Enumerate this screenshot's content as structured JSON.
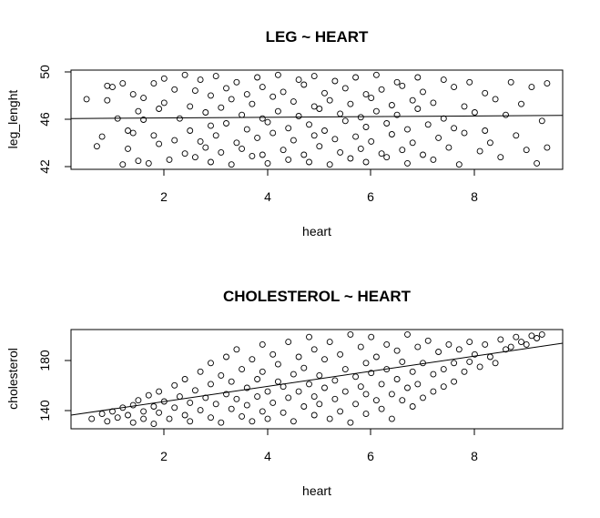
{
  "chart_data": [
    {
      "type": "scatter",
      "title": "LEG ~ HEART",
      "xlabel": "heart",
      "ylabel": "leg_lenght",
      "xlim": [
        0.3,
        9.8
      ],
      "ylim": [
        41.8,
        50.0
      ],
      "x_ticks": [
        "2",
        "4",
        "6",
        "8"
      ],
      "y_ticks": [
        "42",
        "46",
        "50"
      ],
      "trend_line": {
        "x": [
          0.3,
          9.8
        ],
        "y": [
          46.0,
          46.25
        ]
      },
      "grid": false,
      "legend": "none",
      "marker": "open-circle",
      "points": [
        [
          0.6,
          47.6
        ],
        [
          0.8,
          43.7
        ],
        [
          0.9,
          44.5
        ],
        [
          1.0,
          48.7
        ],
        [
          1.0,
          47.5
        ],
        [
          1.1,
          48.6
        ],
        [
          1.2,
          46.0
        ],
        [
          1.3,
          48.9
        ],
        [
          1.3,
          42.2
        ],
        [
          1.4,
          45.0
        ],
        [
          1.4,
          43.5
        ],
        [
          1.5,
          48.0
        ],
        [
          1.5,
          44.8
        ],
        [
          1.6,
          46.6
        ],
        [
          1.6,
          42.5
        ],
        [
          1.7,
          47.7
        ],
        [
          1.7,
          45.9
        ],
        [
          1.8,
          42.3
        ],
        [
          1.9,
          44.6
        ],
        [
          1.9,
          48.9
        ],
        [
          2.0,
          46.8
        ],
        [
          2.0,
          43.9
        ],
        [
          2.1,
          49.3
        ],
        [
          2.1,
          47.3
        ],
        [
          2.2,
          42.6
        ],
        [
          2.3,
          48.4
        ],
        [
          2.3,
          44.2
        ],
        [
          2.4,
          46.0
        ],
        [
          2.5,
          49.6
        ],
        [
          2.5,
          43.1
        ],
        [
          2.6,
          47.0
        ],
        [
          2.6,
          45.0
        ],
        [
          2.7,
          48.3
        ],
        [
          2.7,
          42.8
        ],
        [
          2.8,
          44.1
        ],
        [
          2.8,
          49.2
        ],
        [
          2.9,
          46.5
        ],
        [
          2.9,
          43.6
        ],
        [
          3.0,
          47.9
        ],
        [
          3.0,
          45.4
        ],
        [
          3.0,
          42.4
        ],
        [
          3.1,
          49.5
        ],
        [
          3.1,
          44.6
        ],
        [
          3.2,
          46.9
        ],
        [
          3.2,
          43.2
        ],
        [
          3.3,
          48.5
        ],
        [
          3.3,
          45.6
        ],
        [
          3.4,
          42.2
        ],
        [
          3.4,
          47.6
        ],
        [
          3.5,
          44.0
        ],
        [
          3.5,
          49.0
        ],
        [
          3.6,
          46.3
        ],
        [
          3.6,
          43.5
        ],
        [
          3.7,
          48.0
        ],
        [
          3.7,
          45.1
        ],
        [
          3.8,
          42.9
        ],
        [
          3.8,
          47.2
        ],
        [
          3.9,
          49.4
        ],
        [
          3.9,
          44.4
        ],
        [
          4.0,
          46.0
        ],
        [
          4.0,
          43.0
        ],
        [
          4.0,
          48.6
        ],
        [
          4.1,
          45.7
        ],
        [
          4.1,
          42.3
        ],
        [
          4.2,
          47.8
        ],
        [
          4.2,
          44.8
        ],
        [
          4.3,
          49.6
        ],
        [
          4.3,
          46.6
        ],
        [
          4.4,
          43.4
        ],
        [
          4.4,
          48.2
        ],
        [
          4.5,
          45.2
        ],
        [
          4.5,
          42.6
        ],
        [
          4.6,
          47.4
        ],
        [
          4.6,
          44.2
        ],
        [
          4.7,
          49.2
        ],
        [
          4.7,
          46.2
        ],
        [
          4.8,
          43.0
        ],
        [
          4.8,
          48.8
        ],
        [
          4.9,
          45.5
        ],
        [
          4.9,
          42.4
        ],
        [
          5.0,
          47.0
        ],
        [
          5.0,
          44.6
        ],
        [
          5.0,
          49.5
        ],
        [
          5.1,
          46.8
        ],
        [
          5.1,
          43.7
        ],
        [
          5.2,
          48.1
        ],
        [
          5.2,
          45.0
        ],
        [
          5.3,
          42.2
        ],
        [
          5.3,
          47.5
        ],
        [
          5.4,
          44.3
        ],
        [
          5.4,
          49.1
        ],
        [
          5.5,
          46.4
        ],
        [
          5.5,
          43.2
        ],
        [
          5.6,
          48.5
        ],
        [
          5.6,
          45.8
        ],
        [
          5.7,
          42.7
        ],
        [
          5.7,
          47.2
        ],
        [
          5.8,
          44.5
        ],
        [
          5.8,
          49.4
        ],
        [
          5.9,
          46.1
        ],
        [
          5.9,
          43.5
        ],
        [
          6.0,
          48.0
        ],
        [
          6.0,
          45.3
        ],
        [
          6.0,
          42.4
        ],
        [
          6.1,
          47.7
        ],
        [
          6.1,
          44.1
        ],
        [
          6.2,
          49.6
        ],
        [
          6.2,
          46.6
        ],
        [
          6.3,
          43.1
        ],
        [
          6.3,
          48.4
        ],
        [
          6.4,
          45.6
        ],
        [
          6.4,
          42.8
        ],
        [
          6.5,
          47.1
        ],
        [
          6.5,
          44.7
        ],
        [
          6.6,
          49.0
        ],
        [
          6.6,
          46.3
        ],
        [
          6.7,
          43.4
        ],
        [
          6.7,
          48.7
        ],
        [
          6.8,
          45.1
        ],
        [
          6.8,
          42.3
        ],
        [
          6.9,
          47.5
        ],
        [
          6.9,
          44.0
        ],
        [
          7.0,
          49.4
        ],
        [
          7.0,
          46.8
        ],
        [
          7.1,
          43.0
        ],
        [
          7.1,
          48.2
        ],
        [
          7.2,
          45.5
        ],
        [
          7.3,
          42.6
        ],
        [
          7.3,
          47.3
        ],
        [
          7.4,
          44.4
        ],
        [
          7.5,
          49.2
        ],
        [
          7.5,
          46.0
        ],
        [
          7.6,
          43.6
        ],
        [
          7.7,
          48.6
        ],
        [
          7.7,
          45.2
        ],
        [
          7.8,
          42.2
        ],
        [
          7.9,
          47.0
        ],
        [
          7.9,
          44.8
        ],
        [
          8.0,
          49.0
        ],
        [
          8.1,
          46.5
        ],
        [
          8.2,
          43.3
        ],
        [
          8.3,
          48.1
        ],
        [
          8.3,
          45.0
        ],
        [
          8.4,
          44.0
        ],
        [
          8.5,
          47.6
        ],
        [
          8.6,
          42.8
        ],
        [
          8.7,
          46.3
        ],
        [
          8.8,
          49.0
        ],
        [
          8.9,
          44.6
        ],
        [
          9.0,
          47.2
        ],
        [
          9.1,
          43.4
        ],
        [
          9.2,
          48.6
        ],
        [
          9.3,
          42.3
        ],
        [
          9.4,
          45.8
        ],
        [
          9.5,
          43.6
        ],
        [
          9.5,
          48.9
        ]
      ]
    },
    {
      "type": "scatter",
      "title": "CHOLESTEROL ~ HEART",
      "xlabel": "heart",
      "ylabel": "cholesterol",
      "xlim": [
        0.3,
        9.8
      ],
      "ylim": [
        122,
        202
      ],
      "x_ticks": [
        "2",
        "4",
        "6",
        "8"
      ],
      "y_ticks": [
        "140",
        "180"
      ],
      "trend_line": {
        "x": [
          0.3,
          9.8
        ],
        "y": [
          133,
          191
        ]
      },
      "grid": false,
      "legend": "none",
      "marker": "open-circle",
      "points": [
        [
          0.7,
          130
        ],
        [
          0.9,
          134
        ],
        [
          1.0,
          128
        ],
        [
          1.1,
          136
        ],
        [
          1.2,
          131
        ],
        [
          1.3,
          139
        ],
        [
          1.4,
          133
        ],
        [
          1.5,
          141
        ],
        [
          1.5,
          127
        ],
        [
          1.6,
          145
        ],
        [
          1.7,
          136
        ],
        [
          1.7,
          130
        ],
        [
          1.8,
          149
        ],
        [
          1.9,
          140
        ],
        [
          1.9,
          126
        ],
        [
          2.0,
          152
        ],
        [
          2.0,
          135
        ],
        [
          2.1,
          144
        ],
        [
          2.2,
          130
        ],
        [
          2.3,
          157
        ],
        [
          2.3,
          139
        ],
        [
          2.4,
          148
        ],
        [
          2.5,
          133
        ],
        [
          2.5,
          162
        ],
        [
          2.6,
          143
        ],
        [
          2.6,
          128
        ],
        [
          2.7,
          153
        ],
        [
          2.8,
          168
        ],
        [
          2.8,
          137
        ],
        [
          2.9,
          147
        ],
        [
          3.0,
          175
        ],
        [
          3.0,
          131
        ],
        [
          3.0,
          158
        ],
        [
          3.1,
          142
        ],
        [
          3.2,
          165
        ],
        [
          3.2,
          127
        ],
        [
          3.3,
          150
        ],
        [
          3.3,
          180
        ],
        [
          3.4,
          138
        ],
        [
          3.4,
          160
        ],
        [
          3.5,
          146
        ],
        [
          3.5,
          186
        ],
        [
          3.6,
          132
        ],
        [
          3.6,
          170
        ],
        [
          3.7,
          155
        ],
        [
          3.7,
          141
        ],
        [
          3.8,
          178
        ],
        [
          3.8,
          128
        ],
        [
          3.9,
          162
        ],
        [
          3.9,
          148
        ],
        [
          4.0,
          190
        ],
        [
          4.0,
          136
        ],
        [
          4.0,
          168
        ],
        [
          4.1,
          152
        ],
        [
          4.1,
          130
        ],
        [
          4.2,
          182
        ],
        [
          4.2,
          143
        ],
        [
          4.3,
          160
        ],
        [
          4.3,
          174
        ],
        [
          4.4,
          135
        ],
        [
          4.4,
          156
        ],
        [
          4.5,
          192
        ],
        [
          4.5,
          147
        ],
        [
          4.6,
          166
        ],
        [
          4.6,
          128
        ],
        [
          4.7,
          180
        ],
        [
          4.7,
          152
        ],
        [
          4.8,
          140
        ],
        [
          4.8,
          171
        ],
        [
          4.9,
          196
        ],
        [
          4.9,
          158
        ],
        [
          5.0,
          133
        ],
        [
          5.0,
          186
        ],
        [
          5.0,
          148
        ],
        [
          5.1,
          165
        ],
        [
          5.1,
          142
        ],
        [
          5.2,
          178
        ],
        [
          5.2,
          155
        ],
        [
          5.3,
          130
        ],
        [
          5.3,
          192
        ],
        [
          5.4,
          161
        ],
        [
          5.4,
          146
        ],
        [
          5.5,
          182
        ],
        [
          5.5,
          136
        ],
        [
          5.6,
          170
        ],
        [
          5.6,
          152
        ],
        [
          5.7,
          198
        ],
        [
          5.7,
          127
        ],
        [
          5.8,
          164
        ],
        [
          5.8,
          142
        ],
        [
          5.9,
          188
        ],
        [
          5.9,
          156
        ],
        [
          6.0,
          175
        ],
        [
          6.0,
          134
        ],
        [
          6.0,
          150
        ],
        [
          6.1,
          196
        ],
        [
          6.1,
          167
        ],
        [
          6.2,
          145
        ],
        [
          6.2,
          180
        ],
        [
          6.3,
          158
        ],
        [
          6.3,
          138
        ],
        [
          6.4,
          190
        ],
        [
          6.4,
          170
        ],
        [
          6.5,
          150
        ],
        [
          6.5,
          130
        ],
        [
          6.6,
          185
        ],
        [
          6.6,
          162
        ],
        [
          6.7,
          145
        ],
        [
          6.7,
          176
        ],
        [
          6.8,
          198
        ],
        [
          6.8,
          155
        ],
        [
          6.9,
          168
        ],
        [
          6.9,
          140
        ],
        [
          7.0,
          188
        ],
        [
          7.0,
          158
        ],
        [
          7.1,
          175
        ],
        [
          7.1,
          147
        ],
        [
          7.2,
          193
        ],
        [
          7.3,
          166
        ],
        [
          7.3,
          152
        ],
        [
          7.4,
          184
        ],
        [
          7.5,
          170
        ],
        [
          7.5,
          156
        ],
        [
          7.6,
          190
        ],
        [
          7.7,
          175
        ],
        [
          7.7,
          160
        ],
        [
          7.8,
          186
        ],
        [
          7.9,
          168
        ],
        [
          8.0,
          192
        ],
        [
          8.0,
          176
        ],
        [
          8.1,
          182
        ],
        [
          8.2,
          172
        ],
        [
          8.3,
          190
        ],
        [
          8.4,
          180
        ],
        [
          8.5,
          175
        ],
        [
          8.6,
          194
        ],
        [
          8.7,
          186
        ],
        [
          8.8,
          188
        ],
        [
          8.9,
          196
        ],
        [
          9.0,
          192
        ],
        [
          9.1,
          190
        ],
        [
          9.2,
          197
        ],
        [
          9.3,
          195
        ],
        [
          9.4,
          198
        ]
      ]
    }
  ]
}
